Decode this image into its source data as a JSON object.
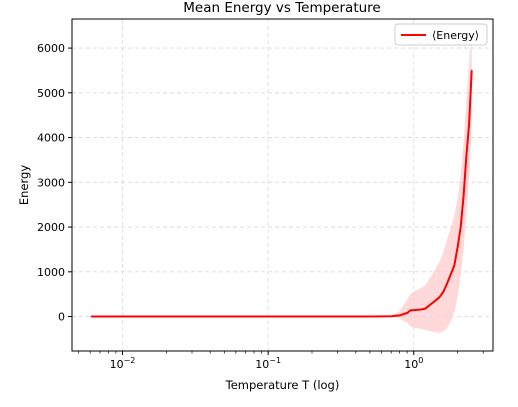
{
  "chart_data": {
    "type": "line",
    "title": "Mean Energy vs Temperature",
    "xlabel": "Temperature T (log)",
    "ylabel": "Energy",
    "xscale": "log",
    "xlim": [
      0.0045,
      3.5
    ],
    "ylim": [
      -770,
      6650
    ],
    "grid": true,
    "legend_position": "top-right",
    "x_ticks": [
      0.01,
      0.1,
      1
    ],
    "x_tick_labels": [
      [
        "10",
        "−2"
      ],
      [
        "10",
        "−1"
      ],
      [
        "10",
        "0"
      ]
    ],
    "y_ticks": [
      0,
      1000,
      2000,
      3000,
      4000,
      5000,
      6000
    ],
    "y_tick_labels": [
      "0",
      "1000",
      "2000",
      "3000",
      "4000",
      "5000",
      "6000"
    ],
    "series": [
      {
        "name": "⟨Energy⟩",
        "color": "#ff0000",
        "band_color": "#ffcccc",
        "x": [
          0.0061,
          0.1,
          0.5,
          0.7,
          0.8,
          0.85,
          0.9,
          0.95,
          1.0,
          1.1,
          1.2,
          1.3,
          1.4,
          1.5,
          1.6,
          1.7,
          1.8,
          1.9,
          2.0,
          2.1,
          2.2,
          2.3,
          2.4,
          2.5
        ],
        "y": [
          0,
          0,
          0,
          5,
          25,
          55,
          80,
          140,
          145,
          155,
          175,
          270,
          350,
          430,
          560,
          750,
          950,
          1150,
          1550,
          2000,
          2700,
          3600,
          4300,
          5500
        ],
        "low": [
          0,
          0,
          0,
          -10,
          -40,
          -100,
          -130,
          -220,
          -250,
          -270,
          -300,
          -330,
          -350,
          -360,
          -330,
          -250,
          -100,
          100,
          450,
          900,
          1500,
          2300,
          3100,
          4300
        ],
        "high": [
          0,
          0,
          0,
          20,
          120,
          260,
          380,
          500,
          560,
          620,
          700,
          880,
          1050,
          1220,
          1450,
          1750,
          2000,
          2250,
          2650,
          3150,
          3900,
          4800,
          5700,
          6250
        ]
      }
    ]
  }
}
